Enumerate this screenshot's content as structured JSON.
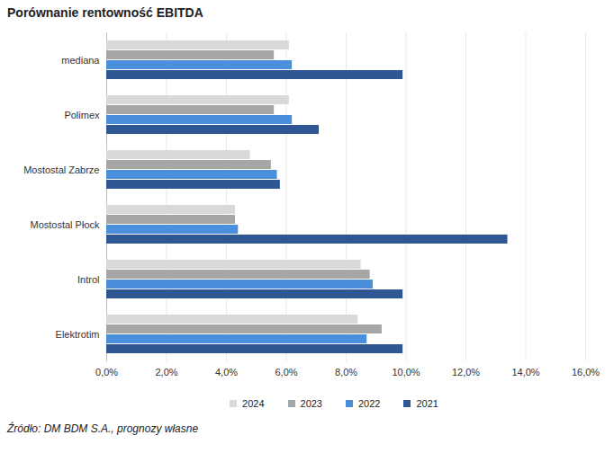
{
  "chart_data": {
    "type": "bar",
    "orientation": "horizontal",
    "title": "Porównanie rentowność EBITDA",
    "source": "Źródło: DM BDM S.A., prognozy własne",
    "categories": [
      "mediana",
      "Polimex",
      "Mostostal Zabrze",
      "Mostostal Płock",
      "Introl",
      "Elektrotim"
    ],
    "series": [
      {
        "name": "2024",
        "color": "#d9d9d9",
        "values": [
          6.1,
          6.1,
          4.8,
          4.3,
          8.5,
          8.4
        ]
      },
      {
        "name": "2023",
        "color": "#a6a6a6",
        "values": [
          5.6,
          5.6,
          5.5,
          4.3,
          8.8,
          9.2
        ]
      },
      {
        "name": "2022",
        "color": "#4a8fdb",
        "values": [
          6.2,
          6.2,
          5.7,
          4.4,
          8.9,
          8.7
        ]
      },
      {
        "name": "2021",
        "color": "#2f5794",
        "values": [
          9.9,
          7.1,
          5.8,
          13.4,
          9.9,
          9.9
        ]
      }
    ],
    "xlim": [
      0,
      16
    ],
    "xticks": [
      {
        "value": 0,
        "label": "0,0%"
      },
      {
        "value": 2,
        "label": "2,0%"
      },
      {
        "value": 4,
        "label": "4,0%"
      },
      {
        "value": 6,
        "label": "6,0%"
      },
      {
        "value": 8,
        "label": "8,0%"
      },
      {
        "value": 10,
        "label": "10,0%"
      },
      {
        "value": 12,
        "label": "12,0%"
      },
      {
        "value": 14,
        "label": "14,0%"
      },
      {
        "value": 16,
        "label": "16,0%"
      }
    ],
    "grid": true,
    "legend": "bottom"
  }
}
